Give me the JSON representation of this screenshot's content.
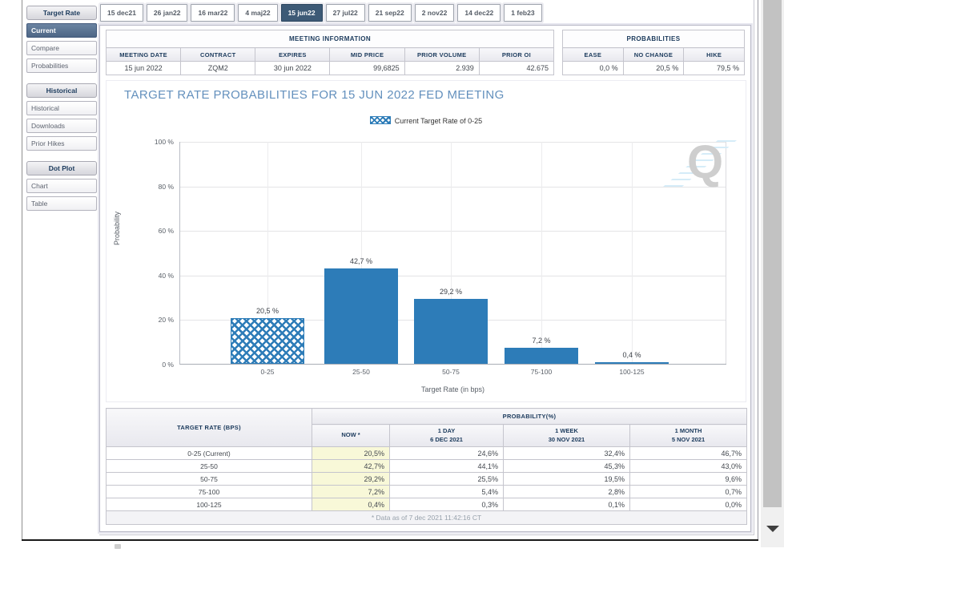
{
  "sidebar": {
    "sections": [
      {
        "header": "Target Rate",
        "items": [
          {
            "label": "Current",
            "selected": true
          },
          {
            "label": "Compare",
            "selected": false
          },
          {
            "label": "Probabilities",
            "selected": false
          }
        ]
      },
      {
        "header": "Historical",
        "items": [
          {
            "label": "Historical",
            "selected": false
          },
          {
            "label": "Downloads",
            "selected": false
          },
          {
            "label": "Prior Hikes",
            "selected": false
          }
        ]
      },
      {
        "header": "Dot Plot",
        "items": [
          {
            "label": "Chart",
            "selected": false
          },
          {
            "label": "Table",
            "selected": false
          }
        ]
      }
    ]
  },
  "tabs": {
    "selected_index": 4,
    "items": [
      "15 dec21",
      "26 jan22",
      "16 mar22",
      "4 maj22",
      "15 jun22",
      "27 jul22",
      "21 sep22",
      "2 nov22",
      "14 dec22",
      "1 feb23"
    ]
  },
  "meeting_info": {
    "title": "MEETING INFORMATION",
    "headers": [
      "MEETING DATE",
      "CONTRACT",
      "EXPIRES",
      "MID PRICE",
      "PRIOR VOLUME",
      "PRIOR OI"
    ],
    "values": [
      "15 jun 2022",
      "ZQM2",
      "30 jun 2022",
      "99,6825",
      "2.939",
      "42.675"
    ],
    "aligns": [
      "c",
      "c",
      "c",
      "r",
      "r",
      "r"
    ]
  },
  "probabilities_summary": {
    "title": "PROBABILITIES",
    "headers": [
      "EASE",
      "NO CHANGE",
      "HIKE"
    ],
    "values": [
      "0,0 %",
      "20,5 %",
      "79,5 %"
    ]
  },
  "chart_data": {
    "type": "bar",
    "title": "TARGET RATE PROBABILITIES FOR 15 JUN 2022 FED MEETING",
    "legend": "Current Target Rate of 0-25",
    "categories": [
      "0-25",
      "25-50",
      "50-75",
      "75-100",
      "100-125"
    ],
    "values": [
      20.5,
      42.7,
      29.2,
      7.2,
      0.4
    ],
    "value_labels": [
      "20,5 %",
      "42,7 %",
      "29,2 %",
      "7,2 %",
      "0,4 %"
    ],
    "hatched_index": 0,
    "xlabel": "Target Rate (in bps)",
    "ylabel": "Probability",
    "ylim": [
      0,
      100
    ],
    "ytick_labels": [
      "100 %",
      "80 %",
      "60 %",
      "40 %",
      "20 %",
      "0 %"
    ],
    "grid": true,
    "legend_position": "top",
    "bar_color": "#2d7cb8"
  },
  "probability_table": {
    "corner_header": "TARGET RATE (BPS)",
    "group_header": "PROBABILITY(%)",
    "columns": [
      {
        "line1": "NOW *",
        "line2": ""
      },
      {
        "line1": "1 DAY",
        "line2": "6 DEC 2021"
      },
      {
        "line1": "1 WEEK",
        "line2": "30 NOV 2021"
      },
      {
        "line1": "1 MONTH",
        "line2": "5 NOV 2021"
      }
    ],
    "rows": [
      {
        "label": "0-25 (Current)",
        "values": [
          "20,5%",
          "24,6%",
          "32,4%",
          "46,7%"
        ]
      },
      {
        "label": "25-50",
        "values": [
          "42,7%",
          "44,1%",
          "45,3%",
          "43,0%"
        ]
      },
      {
        "label": "50-75",
        "values": [
          "29,2%",
          "25,5%",
          "19,5%",
          "9,6%"
        ]
      },
      {
        "label": "75-100",
        "values": [
          "7,2%",
          "5,4%",
          "2,8%",
          "0,7%"
        ]
      },
      {
        "label": "100-125",
        "values": [
          "0,4%",
          "0,3%",
          "0,1%",
          "0,0%"
        ]
      }
    ],
    "footnote": "* Data as of 7 dec 2021 11:42:16 CT"
  },
  "colors": {
    "bar_blue": "#2d7cb8",
    "chart_title_blue": "#6390bd",
    "selected_tab_bg": "#3d5a76",
    "selected_sidebar_bg": "#4d6685",
    "now_column_bg": "#f8f8d8",
    "header_navy": "#1b3a5c"
  }
}
